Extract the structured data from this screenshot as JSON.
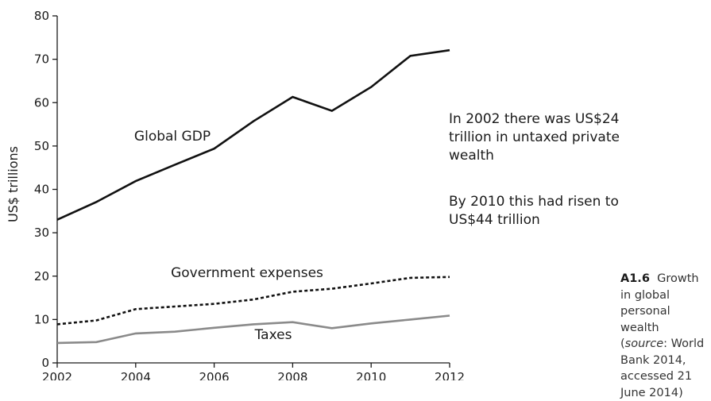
{
  "chart_data": {
    "type": "line",
    "title": "",
    "xlabel": "",
    "ylabel": "US$ trillions",
    "x": [
      2002,
      2003,
      2004,
      2005,
      2006,
      2007,
      2008,
      2009,
      2010,
      2011,
      2012
    ],
    "xlim": [
      2002,
      2012
    ],
    "ylim": [
      0,
      80
    ],
    "xticks": [
      "2002",
      "2004",
      "2006",
      "2008",
      "2010",
      "2012"
    ],
    "yticks": [
      "0",
      "10",
      "20",
      "30",
      "40",
      "50",
      "60",
      "70",
      "80"
    ],
    "grid": false,
    "series": [
      {
        "name": "Global GDP",
        "values": [
          33.0,
          37.1,
          41.9,
          45.7,
          49.4,
          55.7,
          61.3,
          58.1,
          63.6,
          70.8,
          72.1
        ],
        "color": "#111111",
        "style": "solid"
      },
      {
        "name": "Government expenses",
        "values": [
          8.9,
          9.8,
          12.4,
          13.0,
          13.6,
          14.6,
          16.4,
          17.1,
          18.3,
          19.6,
          19.8
        ],
        "color": "#111111",
        "style": "dashed"
      },
      {
        "name": "Taxes",
        "values": [
          4.6,
          4.8,
          6.8,
          7.2,
          8.1,
          8.9,
          9.4,
          8.0,
          9.1,
          10.0,
          10.9
        ],
        "color": "#8a8a8a",
        "style": "solid"
      }
    ]
  },
  "annotations": {
    "text1": "In 2002 there was US$24 trillion in untaxed private wealth",
    "text2": "By 2010 this had risen to US$44 trillion"
  },
  "caption": {
    "figure_number": "A1.6",
    "text_before": "Growth in global personal wealth (",
    "source_word": "source",
    "text_after": ": World Bank 2014, accessed 21 June 2014)"
  }
}
